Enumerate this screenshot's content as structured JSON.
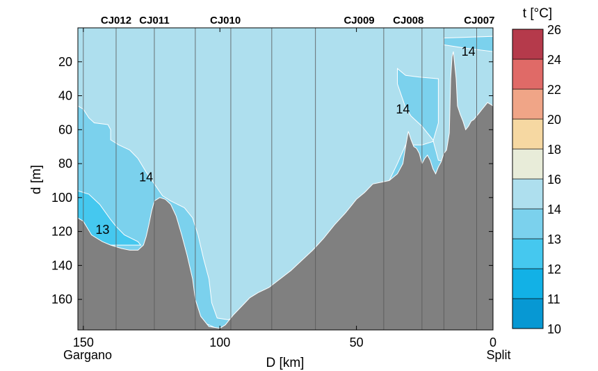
{
  "chart_data": {
    "type": "contour-section",
    "xlabel": "D [km]",
    "ylabel": "d [m]",
    "xlim": [
      152,
      0
    ],
    "ylim": [
      0,
      178
    ],
    "x_ticks": [
      150,
      100,
      50,
      0
    ],
    "y_ticks": [
      20,
      40,
      60,
      80,
      100,
      120,
      140,
      160
    ],
    "end_labels": {
      "left": "Gargano",
      "right": "Split"
    },
    "stations": [
      {
        "name": "CJ012",
        "x": 138
      },
      {
        "name": "CJ011",
        "x": 124
      },
      {
        "name": "CJ010",
        "x": 98
      },
      {
        "name": "CJ009",
        "x": 49
      },
      {
        "name": "CJ008",
        "x": 31
      },
      {
        "name": "CJ007",
        "x": 5
      }
    ],
    "cast_lines_x": [
      150,
      138,
      124,
      109,
      96,
      81,
      65,
      40,
      26,
      18,
      6
    ],
    "contour_labels": [
      {
        "text": "14",
        "x": 127,
        "y": 88
      },
      {
        "text": "13",
        "x": 143,
        "y": 119
      },
      {
        "text": "14",
        "x": 33,
        "y": 48
      },
      {
        "text": "14",
        "x": 9,
        "y": 14
      }
    ],
    "colorbar": {
      "title": "t [°C]",
      "levels": [
        10,
        11,
        12,
        13,
        14,
        16,
        18,
        20,
        22,
        24,
        26
      ],
      "colors": [
        "#0798d3",
        "#12b1e6",
        "#45c8ef",
        "#7bd1ed",
        "#aedfee",
        "#e8ecd9",
        "#f6d8a2",
        "#f0a587",
        "#e06a67",
        "#b53a4b"
      ]
    },
    "temperature_regions": [
      {
        "range": "14-16",
        "color": "#aedfee",
        "boundary": [
          [
            152,
            0
          ],
          [
            0,
            0
          ],
          [
            0,
            178
          ],
          [
            152,
            178
          ]
        ]
      },
      {
        "range": "13-14",
        "color": "#7bd1ed",
        "boundary": [
          [
            152,
            46
          ],
          [
            150,
            48
          ],
          [
            148,
            53
          ],
          [
            146,
            56
          ],
          [
            141,
            57
          ],
          [
            140,
            60
          ],
          [
            140,
            66
          ],
          [
            137,
            69
          ],
          [
            133,
            72
          ],
          [
            130,
            77
          ],
          [
            127,
            85
          ],
          [
            124,
            92
          ],
          [
            121,
            99
          ],
          [
            118,
            102
          ],
          [
            113,
            106
          ],
          [
            110,
            112
          ],
          [
            108,
            122
          ],
          [
            106,
            136
          ],
          [
            104,
            148
          ],
          [
            103,
            162
          ],
          [
            101,
            171
          ],
          [
            97,
            172
          ],
          [
            93,
            170
          ],
          [
            88,
            166
          ],
          [
            82,
            162
          ],
          [
            78,
            155
          ],
          [
            72,
            147
          ],
          [
            66,
            140
          ],
          [
            60,
            133
          ],
          [
            55,
            126
          ],
          [
            49,
            117
          ],
          [
            44,
            106
          ],
          [
            40,
            98
          ],
          [
            38,
            90
          ],
          [
            35,
            80
          ],
          [
            32,
            69
          ],
          [
            26,
            69
          ],
          [
            22,
            67
          ],
          [
            20,
            56
          ],
          [
            20,
            30
          ],
          [
            27,
            29
          ],
          [
            32,
            28
          ],
          [
            35,
            24
          ],
          [
            35,
            33
          ],
          [
            32,
            47
          ],
          [
            30,
            52
          ],
          [
            26,
            58
          ],
          [
            22,
            66
          ],
          [
            20,
            78
          ],
          [
            12,
            80
          ],
          [
            9,
            84
          ],
          [
            0,
            80
          ],
          [
            0,
            178
          ],
          [
            152,
            178
          ]
        ]
      },
      {
        "range": "13-14 (surface patch)",
        "color": "#7bd1ed",
        "boundary": [
          [
            18,
            6
          ],
          [
            0,
            5
          ],
          [
            0,
            14
          ],
          [
            10,
            12
          ],
          [
            18,
            10
          ]
        ]
      },
      {
        "range": "12-13",
        "color": "#45c8ef",
        "boundary": [
          [
            152,
            96
          ],
          [
            148,
            98
          ],
          [
            144,
            104
          ],
          [
            140,
            113
          ],
          [
            138,
            117
          ],
          [
            135,
            122
          ],
          [
            130,
            126
          ],
          [
            129,
            128
          ],
          [
            152,
            128
          ]
        ]
      },
      {
        "range": "12-13 (deep)",
        "color": "#45c8ef",
        "boundary": [
          [
            108,
            173
          ],
          [
            104,
            175
          ],
          [
            100,
            178
          ],
          [
            104,
            178
          ],
          [
            108,
            178
          ]
        ]
      }
    ],
    "bathymetry_depth_m": [
      [
        152,
        112
      ],
      [
        150,
        114
      ],
      [
        147,
        122
      ],
      [
        143,
        126
      ],
      [
        140,
        128
      ],
      [
        136,
        130
      ],
      [
        133,
        131
      ],
      [
        130,
        131
      ],
      [
        128,
        128
      ],
      [
        127,
        123
      ],
      [
        126,
        116
      ],
      [
        125,
        108
      ],
      [
        124,
        102
      ],
      [
        122,
        100
      ],
      [
        120,
        101
      ],
      [
        118,
        104
      ],
      [
        116,
        111
      ],
      [
        114,
        122
      ],
      [
        112,
        134
      ],
      [
        110,
        148
      ],
      [
        109,
        160
      ],
      [
        107,
        170
      ],
      [
        104,
        176
      ],
      [
        100,
        177
      ],
      [
        98,
        175
      ],
      [
        95,
        169
      ],
      [
        92,
        164
      ],
      [
        89,
        159
      ],
      [
        86,
        156
      ],
      [
        82,
        153
      ],
      [
        78,
        148
      ],
      [
        74,
        143
      ],
      [
        70,
        137
      ],
      [
        66,
        131
      ],
      [
        62,
        124
      ],
      [
        58,
        116
      ],
      [
        54,
        109
      ],
      [
        50,
        101
      ],
      [
        47,
        97
      ],
      [
        44,
        92
      ],
      [
        41,
        91
      ],
      [
        38,
        90
      ],
      [
        35,
        86
      ],
      [
        33,
        80
      ],
      [
        32,
        70
      ],
      [
        31,
        61
      ],
      [
        30,
        66
      ],
      [
        29,
        70
      ],
      [
        28,
        71
      ],
      [
        27,
        74
      ],
      [
        26,
        80
      ],
      [
        25,
        77
      ],
      [
        24,
        75
      ],
      [
        23,
        78
      ],
      [
        22,
        83
      ],
      [
        21,
        86
      ],
      [
        20,
        82
      ],
      [
        19,
        79
      ],
      [
        18,
        74
      ],
      [
        17,
        72
      ],
      [
        16,
        62
      ],
      [
        15.5,
        30
      ],
      [
        15,
        17
      ],
      [
        14.5,
        14
      ],
      [
        14,
        22
      ],
      [
        13.5,
        30
      ],
      [
        13,
        46
      ],
      [
        12,
        51
      ],
      [
        11,
        55
      ],
      [
        10,
        60
      ],
      [
        9,
        58
      ],
      [
        8,
        55
      ],
      [
        7,
        54
      ],
      [
        6,
        52
      ],
      [
        5,
        50
      ],
      [
        4,
        48
      ],
      [
        3,
        46
      ],
      [
        2,
        44
      ],
      [
        1,
        45
      ],
      [
        0,
        46
      ]
    ]
  }
}
